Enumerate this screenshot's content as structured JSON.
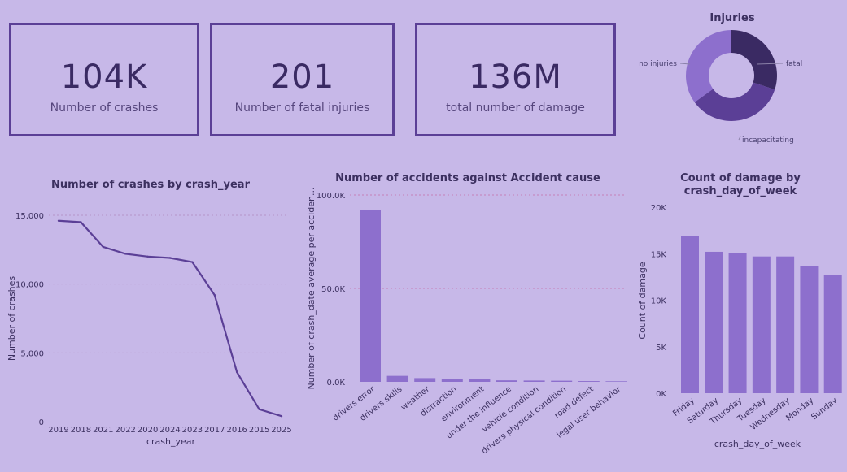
{
  "kpis": [
    {
      "value": "104K",
      "label": "Number of crashes"
    },
    {
      "value": "201",
      "label": "Number of fatal injuries"
    },
    {
      "value": "136M",
      "label": "total number of damage"
    }
  ],
  "colors": {
    "background": "#c7b8e8",
    "accent": "#5b3f96",
    "bar": "#8d6fcd",
    "line": "#5b3f96"
  },
  "chart_data": [
    {
      "type": "pie",
      "title": "Injuries",
      "categories": [
        "fatal",
        "incapacitating",
        "no injuries"
      ],
      "values": [
        30,
        35,
        35
      ],
      "colors": [
        "#3a2a63",
        "#5b3f96",
        "#8d6fcd"
      ],
      "donut": true
    },
    {
      "type": "line",
      "title": "Number of crashes by crash_year",
      "xlabel": "crash_year",
      "ylabel": "Number of crashes",
      "categories": [
        "2019",
        "2018",
        "2021",
        "2022",
        "2020",
        "2024",
        "2023",
        "2017",
        "2016",
        "2015",
        "2025"
      ],
      "values": [
        14600,
        14500,
        12700,
        12200,
        12000,
        11900,
        11600,
        9200,
        3600,
        900,
        400
      ],
      "ylim": [
        0,
        15000
      ],
      "yticks": [
        "0",
        "5,000",
        "10,000",
        "15,000"
      ],
      "grid": true
    },
    {
      "type": "bar",
      "title": "Number of accidents against Accident cause",
      "xlabel": "",
      "ylabel": "Number of crash_date average per acciden...",
      "categories": [
        "drivers error",
        "drivers skills",
        "weather",
        "distraction",
        "environment",
        "under the influence",
        "vehicle condition",
        "drivers physical condition",
        "road defect",
        "legal user behavior"
      ],
      "values": [
        92000,
        3200,
        2000,
        1700,
        1500,
        800,
        700,
        600,
        400,
        300
      ],
      "ylim": [
        0,
        100000
      ],
      "yticks": [
        "0.0K",
        "50.0K",
        "100.0K"
      ],
      "grid": true
    },
    {
      "type": "bar",
      "title": "Count of damage by crash_day_of_week",
      "xlabel": "crash_day_of_week",
      "ylabel": "Count of damage",
      "categories": [
        "Friday",
        "Saturday",
        "Thursday",
        "Tuesday",
        "Wednesday",
        "Monday",
        "Sunday"
      ],
      "values": [
        16900,
        15200,
        15100,
        14700,
        14700,
        13700,
        12700
      ],
      "ylim": [
        0,
        20000
      ],
      "yticks": [
        "0K",
        "5K",
        "10K",
        "15K",
        "20K"
      ],
      "grid": false
    }
  ]
}
